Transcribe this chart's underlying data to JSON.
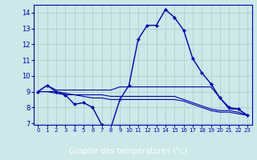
{
  "xlabel": "Graphe des températures (°c)",
  "xlim": [
    -0.5,
    23.5
  ],
  "ylim": [
    6.9,
    14.5
  ],
  "yticks": [
    7,
    8,
    9,
    10,
    11,
    12,
    13,
    14
  ],
  "xticks": [
    0,
    1,
    2,
    3,
    4,
    5,
    6,
    7,
    8,
    9,
    10,
    11,
    12,
    13,
    14,
    15,
    16,
    17,
    18,
    19,
    20,
    21,
    22,
    23
  ],
  "bg_color": "#cce8e8",
  "grid_color": "#b0c8c8",
  "line_color": "#0000bb",
  "xlabel_bg": "#3030a0",
  "xlabel_fg": "#ffffff",
  "curve1_x": [
    0,
    1,
    2,
    3,
    4,
    5,
    6,
    7,
    8,
    9,
    10,
    11,
    12,
    13,
    14,
    15,
    16,
    17,
    18,
    19,
    20,
    21,
    22,
    23
  ],
  "curve1_y": [
    9.0,
    9.4,
    9.0,
    8.8,
    8.2,
    8.3,
    8.0,
    6.9,
    6.7,
    8.5,
    9.4,
    12.3,
    13.2,
    13.2,
    14.2,
    13.7,
    12.9,
    11.1,
    10.2,
    9.5,
    8.6,
    8.0,
    7.9,
    7.5
  ],
  "curve2_x": [
    0,
    1,
    2,
    3,
    4,
    5,
    6,
    7,
    8,
    9,
    10,
    11,
    12,
    13,
    14,
    15,
    16,
    17,
    18,
    19,
    20,
    21,
    22,
    23
  ],
  "curve2_y": [
    9.0,
    9.4,
    9.1,
    9.1,
    9.1,
    9.1,
    9.1,
    9.1,
    9.1,
    9.3,
    9.3,
    9.3,
    9.3,
    9.3,
    9.3,
    9.3,
    9.3,
    9.3,
    9.3,
    9.3,
    8.6,
    7.9,
    7.9,
    7.5
  ],
  "curve3_x": [
    0,
    1,
    2,
    3,
    4,
    5,
    6,
    7,
    8,
    9,
    10,
    11,
    12,
    13,
    14,
    15,
    16,
    17,
    18,
    19,
    20,
    21,
    22,
    23
  ],
  "curve3_y": [
    9.0,
    9.0,
    8.9,
    8.8,
    8.8,
    8.8,
    8.8,
    8.8,
    8.7,
    8.7,
    8.7,
    8.7,
    8.7,
    8.7,
    8.7,
    8.7,
    8.5,
    8.3,
    8.1,
    7.9,
    7.8,
    7.8,
    7.7,
    7.5
  ],
  "curve4_x": [
    0,
    1,
    2,
    3,
    4,
    5,
    6,
    7,
    8,
    9,
    10,
    11,
    12,
    13,
    14,
    15,
    16,
    17,
    18,
    19,
    20,
    21,
    22,
    23
  ],
  "curve4_y": [
    9.0,
    9.0,
    9.0,
    8.9,
    8.8,
    8.7,
    8.6,
    8.6,
    8.5,
    8.5,
    8.5,
    8.5,
    8.5,
    8.5,
    8.5,
    8.5,
    8.4,
    8.2,
    8.0,
    7.8,
    7.7,
    7.7,
    7.6,
    7.5
  ]
}
